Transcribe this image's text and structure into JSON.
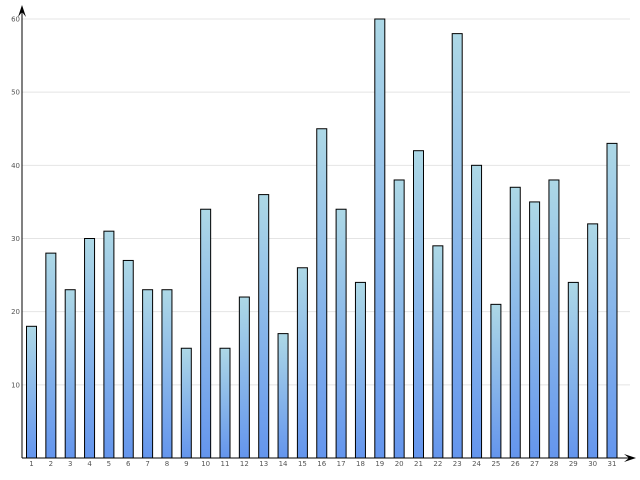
{
  "chart_data": {
    "type": "bar",
    "title": "",
    "xlabel": "",
    "ylabel": "",
    "categories": [
      "1",
      "2",
      "3",
      "4",
      "5",
      "6",
      "7",
      "8",
      "9",
      "10",
      "11",
      "12",
      "13",
      "14",
      "15",
      "16",
      "17",
      "18",
      "19",
      "20",
      "21",
      "22",
      "23",
      "24",
      "25",
      "26",
      "27",
      "28",
      "29",
      "30",
      "31"
    ],
    "values": [
      18,
      28,
      23,
      30,
      31,
      27,
      23,
      23,
      15,
      34,
      15,
      22,
      36,
      17,
      26,
      45,
      34,
      24,
      60,
      38,
      42,
      29,
      58,
      40,
      21,
      37,
      35,
      38,
      24,
      32,
      43
    ],
    "ylim": [
      0,
      60
    ],
    "yticks": [
      10,
      20,
      30,
      40,
      50,
      60
    ],
    "grid": true,
    "legend": "none",
    "colors": {
      "bar_top": "#add8e6",
      "bar_bottom": "#6495ed",
      "bar_outline": "#000000",
      "grid": "#e4e4e4",
      "axis": "#000000"
    }
  }
}
